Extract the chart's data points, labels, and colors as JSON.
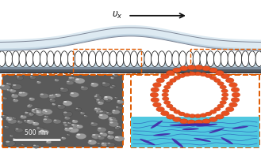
{
  "fig_width": 3.29,
  "fig_height": 1.89,
  "dpi": 100,
  "bg_color": "#ffffff",
  "lens_color": "#b8ccd8",
  "lens_edge": "#808898",
  "lens_top_color": "#d0dce4",
  "substrate_color1": "#b8ccd8",
  "substrate_color2": "#8090a0",
  "substrate_color3": "#606878",
  "substrate_color4": "#404850",
  "liposome_edge": "#1a1a1a",
  "n_liposomes": 38,
  "arrow_color": "#111111",
  "vx_label": "$\\upsilon_x$",
  "dashed_color": "#e05a00",
  "left_border": "#e05a00",
  "right_border": "#e05a00",
  "sem_bg": "#5a5a5a",
  "sem_sphere_color": "#888888",
  "sem_highlight": "#c0c0c0",
  "scale_bar_text": "500 nm",
  "film_color": "#50c8e0",
  "rod_color": "#4428a8",
  "line_color": "#2858b8",
  "head_color": "#e85020",
  "head_edge": "#c04010"
}
